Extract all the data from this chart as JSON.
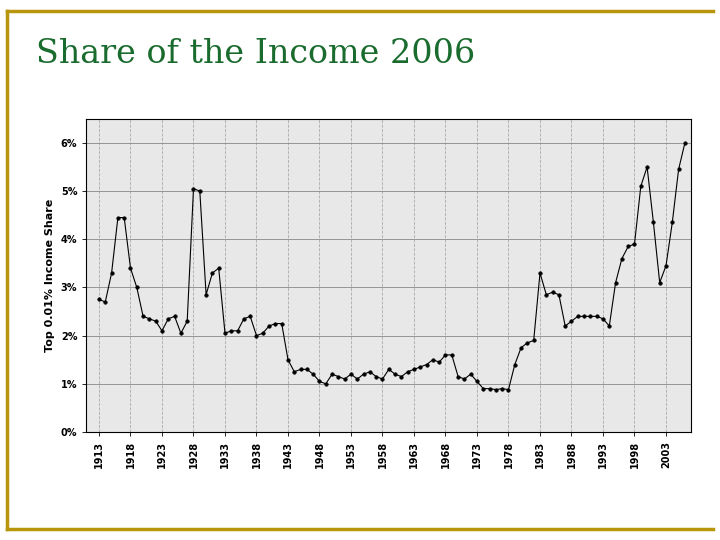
{
  "title": "Share of the Income 2006",
  "title_color": "#1a6b2e",
  "border_color": "#b8960c",
  "ylabel": "Top 0.01% Income Share",
  "plot_bg_color": "#e8e8e8",
  "fig_bg_color": "#ffffff",
  "years": [
    1913,
    1914,
    1915,
    1916,
    1917,
    1918,
    1919,
    1920,
    1921,
    1922,
    1923,
    1924,
    1925,
    1926,
    1927,
    1928,
    1929,
    1930,
    1931,
    1932,
    1933,
    1934,
    1935,
    1936,
    1937,
    1938,
    1939,
    1940,
    1941,
    1942,
    1943,
    1944,
    1945,
    1946,
    1947,
    1948,
    1949,
    1950,
    1951,
    1952,
    1953,
    1954,
    1955,
    1956,
    1957,
    1958,
    1959,
    1960,
    1961,
    1962,
    1963,
    1964,
    1965,
    1966,
    1967,
    1968,
    1969,
    1970,
    1971,
    1972,
    1973,
    1974,
    1975,
    1976,
    1977,
    1978,
    1979,
    1980,
    1981,
    1982,
    1983,
    1984,
    1985,
    1986,
    1987,
    1988,
    1989,
    1990,
    1991,
    1992,
    1993,
    1994,
    1995,
    1996,
    1997,
    1998,
    1999,
    2000,
    2001,
    2002,
    2003,
    2004,
    2005,
    2006
  ],
  "values": [
    2.75,
    2.7,
    3.3,
    4.45,
    4.45,
    3.4,
    3.0,
    2.4,
    2.35,
    2.3,
    2.1,
    2.35,
    2.4,
    2.05,
    2.3,
    5.05,
    5.0,
    2.85,
    3.3,
    3.4,
    2.05,
    2.1,
    2.1,
    2.35,
    2.4,
    2.0,
    2.05,
    2.2,
    2.25,
    2.25,
    1.5,
    1.25,
    1.3,
    1.3,
    1.2,
    1.05,
    1.0,
    1.2,
    1.15,
    1.1,
    1.2,
    1.1,
    1.2,
    1.25,
    1.15,
    1.1,
    1.3,
    1.2,
    1.15,
    1.25,
    1.3,
    1.35,
    1.4,
    1.5,
    1.45,
    1.6,
    1.6,
    1.15,
    1.1,
    1.2,
    1.05,
    0.9,
    0.9,
    0.88,
    0.9,
    0.88,
    1.4,
    1.75,
    1.85,
    1.9,
    3.3,
    2.85,
    2.9,
    2.85,
    2.2,
    2.3,
    2.4,
    2.4,
    2.4,
    2.4,
    2.35,
    2.2,
    3.1,
    3.6,
    3.85,
    3.9,
    5.1,
    5.5,
    4.35,
    3.1,
    3.45,
    4.35,
    5.45,
    6.0
  ],
  "x_ticks": [
    1913,
    1918,
    1923,
    1928,
    1933,
    1938,
    1943,
    1948,
    1953,
    1958,
    1963,
    1968,
    1973,
    1978,
    1983,
    1988,
    1993,
    1998,
    2003
  ],
  "y_ticks": [
    0,
    1,
    2,
    3,
    4,
    5,
    6
  ],
  "xlim": [
    1911,
    2007
  ],
  "ylim": [
    0,
    6.5
  ],
  "title_fontsize": 24,
  "tick_fontsize": 7,
  "ylabel_fontsize": 8,
  "linewidth": 0.8,
  "markersize": 2.5,
  "h_grid_color": "#888888",
  "v_grid_color": "#aaaaaa",
  "h_grid_style": "-",
  "v_grid_style": "--"
}
